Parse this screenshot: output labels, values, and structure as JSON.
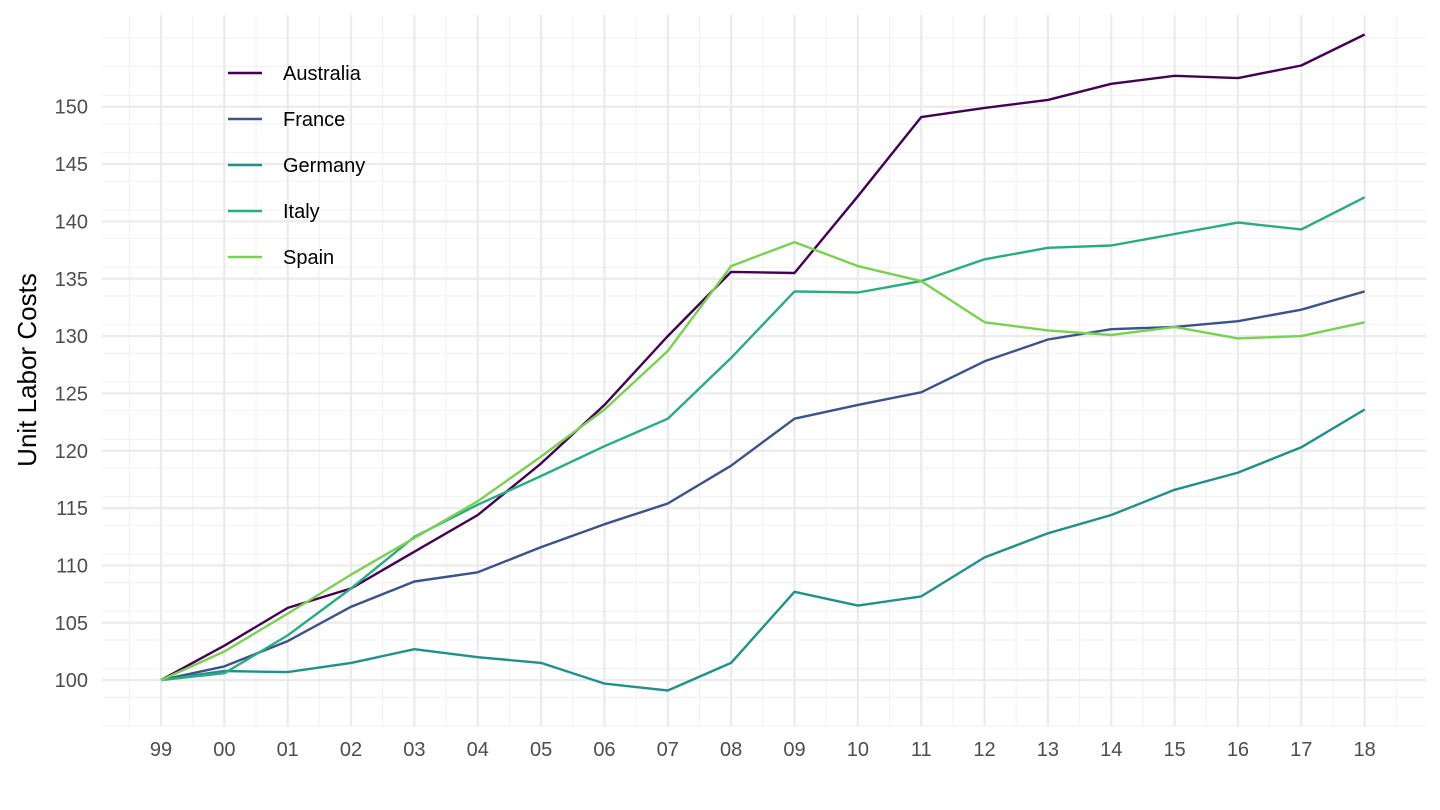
{
  "chart_data": {
    "type": "line",
    "title": "",
    "xlabel": "",
    "ylabel": "Unit Labor Costs",
    "categories": [
      "99",
      "00",
      "01",
      "02",
      "03",
      "04",
      "05",
      "06",
      "07",
      "08",
      "09",
      "10",
      "11",
      "12",
      "13",
      "14",
      "15",
      "16",
      "17",
      "18"
    ],
    "ylim": [
      96,
      158
    ],
    "y_ticks": [
      100,
      105,
      110,
      115,
      120,
      125,
      130,
      135,
      140,
      145,
      150
    ],
    "grid": true,
    "legend_position": "top-left",
    "series": [
      {
        "name": "Australia",
        "color": "#440154",
        "values": [
          100,
          103.0,
          106.3,
          108.0,
          111.2,
          114.4,
          118.9,
          124.0,
          130.0,
          135.6,
          135.5,
          142.2,
          149.1,
          149.9,
          150.6,
          152.0,
          152.7,
          152.5,
          153.6,
          156.3
        ]
      },
      {
        "name": "France",
        "color": "#3b528b",
        "values": [
          100,
          101.2,
          103.4,
          106.4,
          108.6,
          109.4,
          111.6,
          113.6,
          115.4,
          118.7,
          122.8,
          124.0,
          125.1,
          127.8,
          129.7,
          130.6,
          130.8,
          131.3,
          132.3,
          133.9
        ]
      },
      {
        "name": "Germany",
        "color": "#21908c",
        "values": [
          100,
          100.8,
          100.7,
          101.5,
          102.7,
          102.0,
          101.5,
          99.7,
          99.1,
          101.5,
          107.7,
          106.5,
          107.3,
          110.7,
          112.8,
          114.4,
          116.6,
          118.1,
          120.3,
          123.6
        ]
      },
      {
        "name": "Italy",
        "color": "#27ad81",
        "values": [
          100,
          100.6,
          103.9,
          108.0,
          112.5,
          115.3,
          117.8,
          120.4,
          122.8,
          128.1,
          133.9,
          133.8,
          134.8,
          136.7,
          137.7,
          137.9,
          138.9,
          139.9,
          139.3,
          142.1
        ]
      },
      {
        "name": "Spain",
        "color": "#7ad151",
        "values": [
          100,
          102.5,
          105.8,
          109.2,
          112.4,
          115.6,
          119.5,
          123.6,
          128.7,
          136.1,
          138.2,
          136.1,
          134.8,
          131.2,
          130.5,
          130.1,
          130.8,
          129.8,
          130.0,
          131.2
        ]
      }
    ]
  }
}
